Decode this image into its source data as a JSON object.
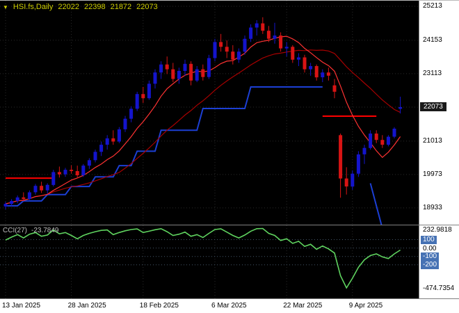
{
  "header": {
    "dropdown_icon": "▼",
    "symbol": "HSI.fs,Daily",
    "open": "22022",
    "high": "22398",
    "low": "21872",
    "close": "22073"
  },
  "colors": {
    "background": "#000000",
    "bull": "#1414CC",
    "bear": "#D81414",
    "ma_fast": "#FF3232",
    "ma_slow": "#A80000",
    "trail_line": "#1C3FD4",
    "cci_line": "#5FD35F",
    "sr_line": "#FF0000",
    "grid": "#2A2A2A",
    "level_line": "#44566A",
    "price_badge_bg": "#1A1A1A",
    "level_badge_bg": "#4672B4",
    "header_text": "#CFCF00",
    "indicator_text": "#BFBFBF"
  },
  "chart_data": {
    "type": "candlestick",
    "symbol": "HSI.fs,Daily",
    "ylim": [
      18412,
      25386
    ],
    "y_ticks": [
      25213,
      24153,
      23113,
      22073,
      21013,
      19973,
      18933
    ],
    "price_badge": 22073,
    "x_labels": [
      {
        "index": 0,
        "label": "13 Jan 2025"
      },
      {
        "index": 11,
        "label": "28 Jan 2025"
      },
      {
        "index": 23,
        "label": "18 Feb 2025"
      },
      {
        "index": 35,
        "label": "6 Mar 2025"
      },
      {
        "index": 47,
        "label": "22 Mar 2025"
      },
      {
        "index": 58,
        "label": "9 Apr 2025"
      }
    ],
    "candles": [
      [
        18980,
        19120,
        18890,
        19060
      ],
      [
        19060,
        19210,
        18990,
        19150
      ],
      [
        19150,
        19320,
        19080,
        19260
      ],
      [
        19260,
        19420,
        19150,
        19210
      ],
      [
        19210,
        19480,
        19180,
        19420
      ],
      [
        19420,
        19680,
        19350,
        19620
      ],
      [
        19620,
        19750,
        19400,
        19480
      ],
      [
        19480,
        19700,
        19380,
        19650
      ],
      [
        19650,
        20120,
        19600,
        20050
      ],
      [
        20050,
        20220,
        19880,
        19980
      ],
      [
        19980,
        20180,
        19900,
        20120
      ],
      [
        20120,
        20260,
        20000,
        20080
      ],
      [
        20080,
        20250,
        19850,
        19950
      ],
      [
        19950,
        20300,
        19900,
        20250
      ],
      [
        20250,
        20480,
        20150,
        20420
      ],
      [
        20420,
        20750,
        20350,
        20680
      ],
      [
        20680,
        21000,
        20550,
        20900
      ],
      [
        20900,
        21200,
        20750,
        21100
      ],
      [
        21100,
        21350,
        20900,
        21000
      ],
      [
        21000,
        21450,
        20950,
        21380
      ],
      [
        21380,
        21800,
        21300,
        21710
      ],
      [
        21710,
        22100,
        21600,
        22020
      ],
      [
        22020,
        22550,
        21950,
        22480
      ],
      [
        22480,
        22700,
        22200,
        22350
      ],
      [
        22350,
        22900,
        22300,
        22800
      ],
      [
        22800,
        23250,
        22650,
        23150
      ],
      [
        23150,
        23500,
        22950,
        23400
      ],
      [
        23400,
        23650,
        23100,
        23250
      ],
      [
        23250,
        23450,
        22850,
        22950
      ],
      [
        22950,
        23300,
        22800,
        23200
      ],
      [
        23200,
        23550,
        23050,
        23420
      ],
      [
        23420,
        23500,
        22750,
        22900
      ],
      [
        22900,
        23350,
        22850,
        23250
      ],
      [
        23250,
        23400,
        22900,
        23010
      ],
      [
        23010,
        23700,
        22950,
        23600
      ],
      [
        23600,
        24200,
        23500,
        24100
      ],
      [
        24100,
        24350,
        23800,
        23950
      ],
      [
        23950,
        24150,
        23600,
        23800
      ],
      [
        23800,
        24000,
        23400,
        23550
      ],
      [
        23550,
        23900,
        23450,
        23800
      ],
      [
        23800,
        24300,
        23700,
        24200
      ],
      [
        24200,
        24650,
        24100,
        24550
      ],
      [
        24550,
        24780,
        24300,
        24680
      ],
      [
        24680,
        24870,
        24350,
        24450
      ],
      [
        24450,
        24600,
        24100,
        24200
      ],
      [
        24200,
        24700,
        24050,
        24300
      ],
      [
        24300,
        24400,
        23800,
        23900
      ],
      [
        23900,
        24100,
        23650,
        23950
      ],
      [
        23950,
        24000,
        23450,
        23550
      ],
      [
        23550,
        23750,
        23350,
        23620
      ],
      [
        23620,
        23700,
        23150,
        23250
      ],
      [
        23250,
        23450,
        23050,
        23350
      ],
      [
        23350,
        23400,
        22900,
        23000
      ],
      [
        23000,
        23250,
        22850,
        23150
      ],
      [
        23150,
        23300,
        22900,
        23050
      ],
      [
        22750,
        22950,
        22350,
        22550
      ],
      [
        21200,
        21250,
        19250,
        19850
      ],
      [
        19850,
        20200,
        19350,
        19600
      ],
      [
        19600,
        20100,
        19500,
        20000
      ],
      [
        20000,
        20700,
        19900,
        20600
      ],
      [
        20600,
        20900,
        20300,
        20800
      ],
      [
        20800,
        21350,
        20750,
        21250
      ],
      [
        21250,
        21350,
        20950,
        21050
      ],
      [
        21050,
        21200,
        20800,
        20900
      ],
      [
        20900,
        21200,
        20850,
        21150
      ],
      [
        21150,
        21450,
        21100,
        21400
      ],
      [
        22022,
        22398,
        21872,
        22073
      ]
    ],
    "overlays": {
      "ma_fast_period": 8,
      "ma_slow_period": 20,
      "step_line": [
        19000,
        19000,
        19000,
        19150,
        19150,
        19150,
        19150,
        19350,
        19350,
        19350,
        19350,
        19600,
        19600,
        19600,
        19600,
        19900,
        19900,
        19900,
        19900,
        20250,
        20250,
        20250,
        20700,
        20700,
        20700,
        20700,
        21350,
        21350,
        21350,
        21350,
        21350,
        21350,
        21350,
        22030,
        22030,
        22030,
        22030,
        22030,
        22030,
        22030,
        22030,
        22700,
        22700,
        22700,
        22700,
        22700,
        22700,
        22700,
        22700,
        22700,
        22700,
        22700,
        22700,
        22700,
        null,
        null,
        null,
        null,
        null,
        null,
        null,
        19700,
        19000,
        18300,
        17600,
        17100,
        16700
      ],
      "segments": [
        {
          "price": 19860,
          "i1": 0,
          "i2": 8
        },
        {
          "price": 21790,
          "i1": 53,
          "i2": 62
        }
      ]
    },
    "indicator": {
      "name": "CCI(27)",
      "value": "-23.7849",
      "ylim": [
        -600,
        270
      ],
      "levels": [
        100,
        0,
        -100,
        -200
      ],
      "scale_items": [
        {
          "label": "232.9818",
          "value": 232.9818,
          "badge": false
        },
        {
          "label": "100",
          "value": 100,
          "badge": true
        },
        {
          "label": "0.00",
          "value": 0,
          "badge": false
        },
        {
          "label": "-100",
          "value": -100,
          "badge": true
        },
        {
          "label": "-200",
          "value": -200,
          "badge": true
        },
        {
          "label": "-474.7354",
          "value": -474.7354,
          "badge": false
        }
      ],
      "values": [
        95,
        130,
        160,
        120,
        165,
        185,
        140,
        155,
        215,
        170,
        185,
        150,
        110,
        150,
        175,
        195,
        210,
        215,
        160,
        185,
        205,
        220,
        228,
        185,
        200,
        218,
        230,
        195,
        150,
        165,
        190,
        140,
        160,
        125,
        175,
        220,
        229,
        190,
        150,
        120,
        155,
        200,
        230,
        232.9818,
        175,
        150,
        90,
        110,
        55,
        80,
        20,
        45,
        -15,
        25,
        -10,
        -60,
        -330,
        -474.7354,
        -360,
        -230,
        -140,
        -90,
        -70,
        -105,
        -125,
        -70,
        -23.7849
      ]
    }
  }
}
